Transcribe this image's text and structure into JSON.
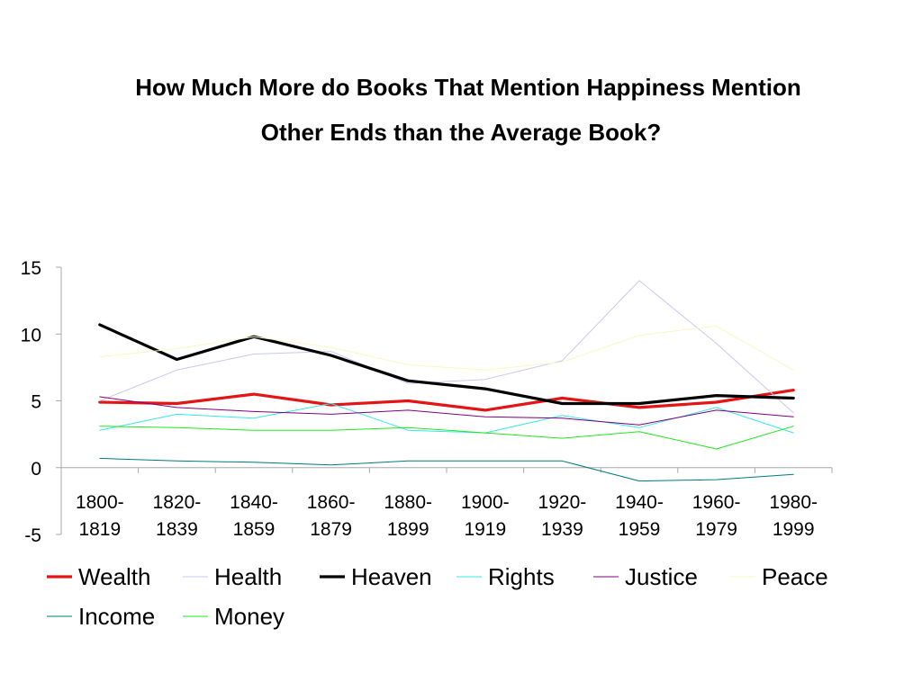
{
  "chart_data": {
    "type": "line",
    "title_line1": "How Much More do Books That Mention Happiness Mention",
    "title_line2": "Other Ends than the Average Book?",
    "categories": [
      [
        "1800-",
        "1819"
      ],
      [
        "1820-",
        "1839"
      ],
      [
        "1840-",
        "1859"
      ],
      [
        "1860-",
        "1879"
      ],
      [
        "1880-",
        "1899"
      ],
      [
        "1900-",
        "1919"
      ],
      [
        "1920-",
        "1939"
      ],
      [
        "1940-",
        "1959"
      ],
      [
        "1960-",
        "1979"
      ],
      [
        "1980-",
        "1999"
      ]
    ],
    "ylim": [
      -5,
      15
    ],
    "yticks": [
      -5,
      0,
      5,
      10,
      15
    ],
    "grid": false,
    "legend_position": "bottom",
    "series": [
      {
        "name": "Wealth",
        "color": "#e41414",
        "width": 3.2,
        "values": [
          4.9,
          4.8,
          5.5,
          4.7,
          5.0,
          4.3,
          5.2,
          4.5,
          4.9,
          5.8
        ]
      },
      {
        "name": "Health",
        "color": "#c8c8f5",
        "width": 1,
        "values": [
          5.0,
          7.3,
          8.5,
          8.7,
          6.3,
          6.6,
          8.0,
          14.0,
          9.3,
          4.1
        ]
      },
      {
        "name": "Heaven",
        "color": "#000000",
        "width": 3.2,
        "values": [
          10.7,
          8.1,
          9.8,
          8.4,
          6.5,
          5.9,
          4.8,
          4.8,
          5.4,
          5.2
        ]
      },
      {
        "name": "Rights",
        "color": "#35e8e8",
        "width": 1,
        "values": [
          2.8,
          4.0,
          3.7,
          4.8,
          2.8,
          2.6,
          3.9,
          3.0,
          4.5,
          2.6
        ]
      },
      {
        "name": "Justice",
        "color": "#800080",
        "width": 1,
        "values": [
          5.3,
          4.5,
          4.2,
          4.0,
          4.3,
          3.8,
          3.7,
          3.2,
          4.3,
          3.8
        ]
      },
      {
        "name": "Peace",
        "color": "#f8f8c4",
        "width": 1,
        "values": [
          8.3,
          8.9,
          9.8,
          9.0,
          7.7,
          7.3,
          7.9,
          9.9,
          10.6,
          7.3
        ]
      },
      {
        "name": "Income",
        "color": "#007c7c",
        "width": 1,
        "values": [
          0.7,
          0.5,
          0.4,
          0.2,
          0.5,
          0.5,
          0.5,
          -1.0,
          -0.9,
          -0.5
        ]
      },
      {
        "name": "Money",
        "color": "#1ee81e",
        "width": 1,
        "values": [
          3.1,
          3.0,
          2.8,
          2.8,
          3.0,
          2.6,
          2.2,
          2.7,
          1.4,
          3.1
        ]
      }
    ]
  }
}
